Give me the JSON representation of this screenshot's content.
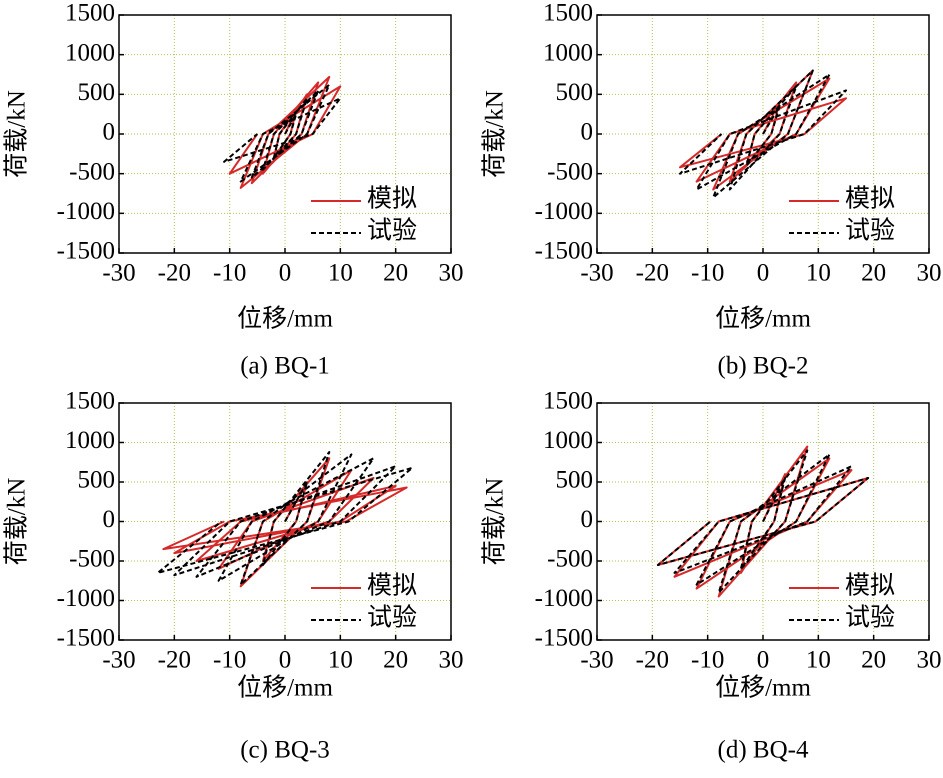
{
  "chart_data": [
    {
      "type": "line",
      "caption": "(a) BQ-1",
      "x_label": "位移/mm",
      "y_label": "荷载/kN",
      "xlim": [
        -30,
        30
      ],
      "xticks": [
        -30,
        -20,
        -10,
        0,
        10,
        20,
        30
      ],
      "ylim": [
        -1500,
        1500
      ],
      "yticks": [
        -1500,
        -1000,
        -500,
        0,
        500,
        1000,
        1500
      ],
      "grid": true,
      "series": [
        {
          "name": "模拟",
          "color": "#d62a2a",
          "dash": false,
          "x": [
            0,
            2,
            1,
            -2,
            -1,
            4,
            2,
            -4,
            -2,
            6,
            3,
            -6,
            -3,
            8,
            4,
            -8,
            -4,
            10,
            5,
            -10,
            -5
          ],
          "values": [
            0,
            300,
            0,
            -300,
            0,
            500,
            0,
            -500,
            0,
            650,
            0,
            -620,
            0,
            720,
            0,
            -680,
            0,
            600,
            0,
            -500,
            0
          ]
        },
        {
          "name": "试验",
          "color": "#000000",
          "dash": true,
          "x": [
            0,
            2,
            1,
            -2,
            -1,
            4,
            2,
            -4,
            -2,
            6,
            3,
            -6,
            -3,
            8,
            4,
            -8,
            -4,
            10,
            5,
            -11,
            -5
          ],
          "values": [
            0,
            250,
            0,
            -300,
            0,
            450,
            0,
            -450,
            0,
            550,
            0,
            -550,
            0,
            620,
            0,
            -600,
            0,
            450,
            0,
            -350,
            0
          ]
        }
      ]
    },
    {
      "type": "line",
      "caption": "(b) BQ-2",
      "x_label": "位移/mm",
      "y_label": "荷载/kN",
      "xlim": [
        -30,
        30
      ],
      "xticks": [
        -30,
        -20,
        -10,
        0,
        10,
        20,
        30
      ],
      "ylim": [
        -1500,
        1500
      ],
      "yticks": [
        -1500,
        -1000,
        -500,
        0,
        500,
        1000,
        1500
      ],
      "grid": true,
      "series": [
        {
          "name": "模拟",
          "color": "#d62a2a",
          "dash": false,
          "x": [
            0,
            3,
            1.5,
            -3,
            -1.5,
            6,
            3,
            -6,
            -3,
            9,
            4.5,
            -9,
            -4.5,
            12,
            6,
            -12,
            -6,
            15,
            7.5,
            -15,
            -7.5
          ],
          "values": [
            0,
            400,
            0,
            -400,
            0,
            650,
            0,
            -600,
            0,
            800,
            0,
            -700,
            0,
            700,
            0,
            -600,
            0,
            450,
            0,
            -420,
            0
          ]
        },
        {
          "name": "试验",
          "color": "#000000",
          "dash": true,
          "x": [
            0,
            3,
            1.5,
            -3,
            -1.5,
            6,
            3,
            -6,
            -3,
            9,
            4.5,
            -9,
            -4.5,
            12,
            6,
            -12,
            -6,
            15,
            7.5,
            -15,
            -7.5
          ],
          "values": [
            0,
            350,
            0,
            -400,
            0,
            600,
            0,
            -700,
            0,
            800,
            0,
            -800,
            0,
            750,
            0,
            -700,
            0,
            550,
            0,
            -500,
            0
          ]
        }
      ]
    },
    {
      "type": "line",
      "caption": "(c) BQ-3",
      "x_label": "位移/mm",
      "y_label": "荷载/kN",
      "xlim": [
        -30,
        30
      ],
      "xticks": [
        -30,
        -20,
        -10,
        0,
        10,
        20,
        30
      ],
      "ylim": [
        -1500,
        1500
      ],
      "yticks": [
        -1500,
        -1000,
        -500,
        0,
        500,
        1000,
        1500
      ],
      "grid": true,
      "series": [
        {
          "name": "模拟",
          "color": "#d62a2a",
          "dash": false,
          "x": [
            0,
            4,
            2,
            -4,
            -2,
            8,
            4,
            -8,
            -4,
            12,
            6,
            -12,
            -6,
            16,
            8,
            -16,
            -8,
            20,
            10,
            -20,
            -10,
            22,
            11,
            -22,
            -11
          ],
          "values": [
            0,
            500,
            0,
            -500,
            0,
            800,
            0,
            -820,
            0,
            650,
            0,
            -600,
            0,
            550,
            0,
            -500,
            0,
            450,
            0,
            -400,
            0,
            430,
            0,
            -350,
            0
          ]
        },
        {
          "name": "试验",
          "color": "#000000",
          "dash": true,
          "x": [
            0,
            4,
            2,
            -4,
            -2,
            8,
            4,
            -8,
            -4,
            12,
            6,
            -12,
            -6,
            16,
            8,
            -16,
            -8,
            20,
            10,
            -20,
            -10,
            23,
            11.5,
            -23,
            -11.5
          ],
          "values": [
            0,
            500,
            0,
            -550,
            0,
            880,
            0,
            -800,
            0,
            850,
            0,
            -750,
            0,
            800,
            0,
            -700,
            0,
            700,
            0,
            -680,
            0,
            680,
            0,
            -650,
            0
          ]
        }
      ]
    },
    {
      "type": "line",
      "caption": "(d) BQ-4",
      "x_label": "位移/mm",
      "y_label": "荷载/kN",
      "xlim": [
        -30,
        30
      ],
      "xticks": [
        -30,
        -20,
        -10,
        0,
        10,
        20,
        30
      ],
      "ylim": [
        -1500,
        1500
      ],
      "yticks": [
        -1500,
        -1000,
        -500,
        0,
        500,
        1000,
        1500
      ],
      "grid": true,
      "series": [
        {
          "name": "模拟",
          "color": "#d62a2a",
          "dash": false,
          "x": [
            0,
            4,
            2,
            -4,
            -2,
            8,
            4,
            -8,
            -4,
            12,
            6,
            -12,
            -6,
            16,
            8,
            -16,
            -8,
            19,
            9.5,
            -19,
            -9.5
          ],
          "values": [
            0,
            600,
            0,
            -650,
            0,
            950,
            0,
            -950,
            0,
            800,
            0,
            -850,
            0,
            650,
            0,
            -700,
            0,
            550,
            0,
            -550,
            0
          ]
        },
        {
          "name": "试验",
          "color": "#000000",
          "dash": true,
          "x": [
            0,
            4,
            2,
            -4,
            -2,
            8,
            4,
            -8,
            -4,
            12,
            6,
            -12,
            -6,
            16,
            8,
            -16,
            -8,
            19,
            9.5,
            -19,
            -9.5
          ],
          "values": [
            0,
            550,
            0,
            -600,
            0,
            900,
            0,
            -900,
            0,
            850,
            0,
            -800,
            0,
            700,
            0,
            -650,
            0,
            550,
            0,
            -550,
            0
          ]
        }
      ]
    }
  ]
}
